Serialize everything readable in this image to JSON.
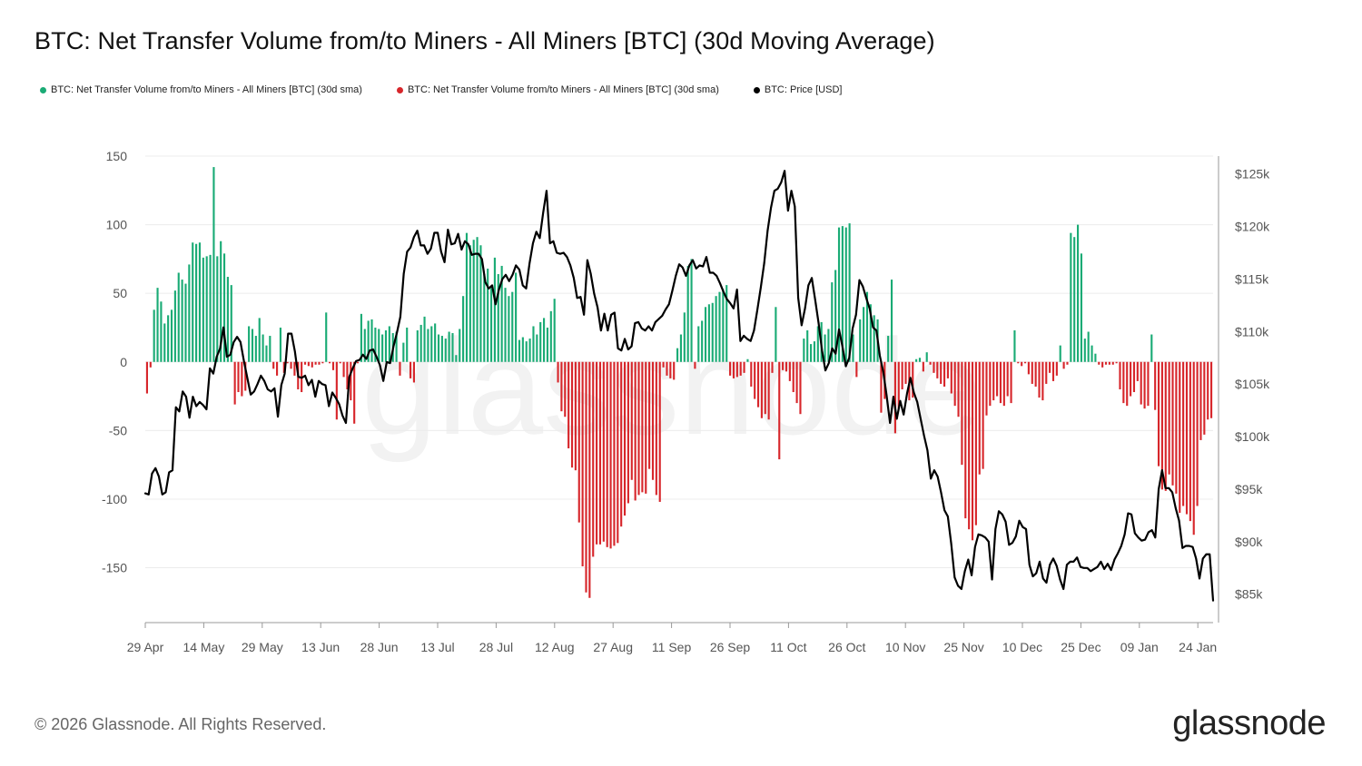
{
  "header": {
    "title": "BTC: Net Transfer Volume from/to Miners - All Miners [BTC] (30d Moving Average)"
  },
  "legend": [
    {
      "label": "BTC: Net Transfer Volume from/to Miners - All Miners [BTC] (30d sma)",
      "color": "#1aab75"
    },
    {
      "label": "BTC: Net Transfer Volume from/to Miners - All Miners [BTC] (30d sma)",
      "color": "#d7262b"
    },
    {
      "label": "BTC: Price [USD]",
      "color": "#000000"
    }
  ],
  "footer": {
    "copyright": "© 2026 Glassnode. All Rights Reserved.",
    "brand": "glassnode",
    "watermark": "glassnode"
  },
  "chart_data": {
    "type": "bar",
    "positive_color": "#1aab75",
    "negative_color": "#d7262b",
    "line_color": "#000000",
    "x_tick_labels": [
      "29 Apr",
      "14 May",
      "29 May",
      "13 Jun",
      "28 Jun",
      "13 Jul",
      "28 Jul",
      "12 Aug",
      "27 Aug",
      "11 Sep",
      "26 Sep",
      "11 Oct",
      "26 Oct",
      "10 Nov",
      "25 Nov",
      "10 Dec",
      "25 Dec",
      "09 Jan",
      "24 Jan"
    ],
    "y_left": {
      "min": -190,
      "max": 150,
      "ticks": [
        150,
        100,
        50,
        0,
        -50,
        -100,
        -150
      ],
      "tick_labels": [
        "150",
        "100",
        "50",
        "0",
        "-50",
        "-100",
        "-150"
      ]
    },
    "y_right": {
      "min": 82300,
      "max": 126700,
      "ticks": [
        125000,
        120000,
        115000,
        110000,
        105000,
        100000,
        95000,
        90000,
        85000
      ],
      "tick_labels": [
        "$125k",
        "$120k",
        "$115k",
        "$110k",
        "$105k",
        "$100k",
        "$95k",
        "$90k",
        "$85k"
      ]
    },
    "grid": true,
    "series": [
      {
        "axis": "left",
        "kind": "bar",
        "values": [
          -23,
          -4,
          38,
          54,
          44,
          28,
          34,
          38,
          52,
          65,
          60,
          57,
          71,
          87,
          86,
          87,
          76,
          77,
          78,
          142,
          77,
          88,
          79,
          62,
          56,
          -31,
          -22,
          -25,
          -21,
          26,
          24,
          19,
          32,
          20,
          12,
          19,
          -5,
          -10,
          25,
          -8,
          -1,
          -5,
          -10,
          -20,
          -22,
          -2,
          -3,
          -4,
          -2,
          -2,
          -1,
          36,
          -1,
          -6,
          -42,
          -1,
          -11,
          -20,
          -28,
          -45,
          -1,
          35,
          24,
          30,
          31,
          25,
          24,
          20,
          23,
          26,
          21,
          22,
          -10,
          14,
          25,
          -12,
          -15,
          23,
          27,
          33,
          24,
          26,
          28,
          20,
          19,
          17,
          22,
          21,
          5,
          24,
          48,
          94,
          85,
          89,
          91,
          85,
          64,
          68,
          54,
          76,
          64,
          70,
          54,
          48,
          51,
          65,
          16,
          18,
          15,
          17,
          26,
          20,
          29,
          32,
          25,
          37,
          46,
          -15,
          -36,
          -40,
          -63,
          -77,
          -79,
          -117,
          -149,
          -168,
          -172,
          -142,
          -133,
          -133,
          -131,
          -135,
          -136,
          -134,
          -132,
          -120,
          -112,
          -103,
          -86,
          -101,
          -97,
          -95,
          -96,
          -78,
          -86,
          -97,
          -102,
          -4,
          -10,
          -12,
          -13,
          10,
          20,
          36,
          70,
          75,
          -5,
          26,
          30,
          40,
          42,
          43,
          48,
          51,
          53,
          56,
          -10,
          -12,
          -11,
          -10,
          -8,
          2,
          -18,
          -27,
          -33,
          -41,
          -38,
          -42,
          -8,
          40,
          -71,
          -6,
          -7,
          -14,
          -22,
          -30,
          -38,
          17,
          23,
          13,
          15,
          26,
          29,
          20,
          24,
          58,
          67,
          98,
          99,
          98,
          101,
          20,
          -11,
          31,
          40,
          51,
          42,
          34,
          31,
          -37,
          -27,
          19,
          60,
          -52,
          -34,
          -20,
          -16,
          -28,
          -26,
          2,
          3,
          -7,
          7,
          -2,
          -8,
          -12,
          -16,
          -18,
          -12,
          -23,
          -32,
          -40,
          -75,
          -114,
          -122,
          -130,
          -119,
          -82,
          -78,
          -39,
          -32,
          -28,
          -25,
          -30,
          -32,
          -25,
          -30,
          23,
          -1,
          -3,
          -1,
          -9,
          -16,
          -18,
          -26,
          -28,
          -16,
          -8,
          -14,
          -10,
          12,
          -5,
          -2,
          94,
          91,
          100,
          79,
          17,
          22,
          12,
          6,
          -2,
          -4,
          -2,
          -2,
          -2,
          -1,
          -20,
          -30,
          -32,
          -25,
          -22,
          -14,
          -31,
          -34,
          -32,
          20,
          -35,
          -76,
          -93,
          -94,
          -82,
          -90,
          -96,
          -110,
          -105,
          -111,
          -116,
          -126,
          -105,
          -57,
          -53,
          -42,
          -41
        ]
      },
      {
        "axis": "right",
        "kind": "line",
        "name": "BTC: Price [USD]",
        "values": [
          94600,
          94500,
          96500,
          97000,
          96200,
          94500,
          94700,
          96600,
          96800,
          102800,
          102400,
          104300,
          103800,
          101800,
          103800,
          102900,
          103300,
          103000,
          102600,
          106500,
          106000,
          107600,
          108400,
          110400,
          107600,
          107800,
          109000,
          109500,
          109000,
          107200,
          105600,
          104000,
          104300,
          105000,
          105800,
          105300,
          104500,
          104300,
          104600,
          101900,
          104900,
          106000,
          109800,
          109800,
          108100,
          105700,
          105600,
          105800,
          104900,
          105400,
          103800,
          105300,
          105000,
          104900,
          102900,
          104200,
          103700,
          103100,
          102000,
          101300,
          105700,
          106500,
          107200,
          107300,
          107800,
          107400,
          108200,
          108300,
          107600,
          106800,
          105300,
          107100,
          107000,
          108600,
          109900,
          111400,
          115500,
          117600,
          118000,
          119000,
          119600,
          118200,
          118200,
          117400,
          117900,
          119400,
          119400,
          117600,
          116600,
          119700,
          118300,
          118400,
          119300,
          117800,
          118600,
          118300,
          117300,
          117400,
          117400,
          116900,
          114700,
          114100,
          114400,
          112600,
          114000,
          115000,
          115400,
          114800,
          115400,
          116300,
          115900,
          114400,
          114100,
          116500,
          118400,
          119500,
          118900,
          121300,
          123400,
          118400,
          118600,
          117500,
          117400,
          117500,
          117100,
          116300,
          115100,
          113200,
          113300,
          111600,
          116800,
          115500,
          113600,
          112300,
          110100,
          111700,
          110100,
          111600,
          111800,
          108400,
          108200,
          109300,
          108300,
          108600,
          110800,
          110900,
          110300,
          110100,
          110500,
          110100,
          110900,
          111200,
          111500,
          112100,
          112600,
          113900,
          115300,
          116400,
          116100,
          115300,
          116300,
          116800,
          116000,
          116300,
          116200,
          117100,
          115600,
          115600,
          115300,
          114600,
          113800,
          113100,
          112700,
          112200,
          114000,
          109100,
          109600,
          109300,
          109100,
          110100,
          112100,
          114200,
          116500,
          119600,
          121800,
          123400,
          123600,
          124200,
          125300,
          121500,
          123400,
          121900,
          113200,
          110600,
          112200,
          114400,
          115100,
          113000,
          110800,
          108200,
          106300,
          107000,
          108400,
          107900,
          110200,
          108600,
          106700,
          107500,
          110300,
          111600,
          114900,
          114300,
          113200,
          112200,
          110400,
          110100,
          107700,
          106200,
          103900,
          101300,
          103800,
          101700,
          103400,
          102100,
          104100,
          105600,
          104200,
          103300,
          101700,
          100100,
          98700,
          96000,
          96800,
          96200,
          94700,
          93000,
          92400,
          89800,
          86600,
          85800,
          85500,
          87200,
          88300,
          86800,
          89500,
          90700,
          90600,
          90400,
          90000,
          86400,
          91200,
          92900,
          92600,
          91900,
          89700,
          89900,
          90500,
          92000,
          91400,
          91200,
          87800,
          86700,
          87000,
          88100,
          86500,
          86100,
          87800,
          88400,
          87700,
          86400,
          85500,
          87800,
          88100,
          88100,
          88500,
          87600,
          87500,
          87500,
          87200,
          87400,
          87600,
          88100,
          87400,
          87900,
          87300,
          88300,
          88900,
          89600,
          90700,
          92700,
          92600,
          90800,
          90400,
          90100,
          90200,
          90900,
          91100,
          90400,
          95000,
          96800,
          95100,
          95100,
          94700,
          93200,
          92000,
          89400,
          89600,
          89600,
          89500,
          88400,
          86500,
          88400,
          88800,
          88800,
          84400
        ]
      }
    ]
  }
}
